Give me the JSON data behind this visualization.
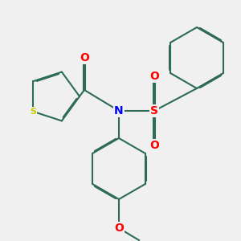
{
  "background_color": "#f0f0f0",
  "bond_color": "#2d6b55",
  "atom_colors": {
    "N": "#0000ff",
    "S_sulfone": "#ff0000",
    "S_thiophene": "#cccc00",
    "O": "#ff0000"
  },
  "lw": 1.5,
  "dbo": 0.012,
  "figsize": [
    3.0,
    3.0
  ],
  "dpi": 100
}
